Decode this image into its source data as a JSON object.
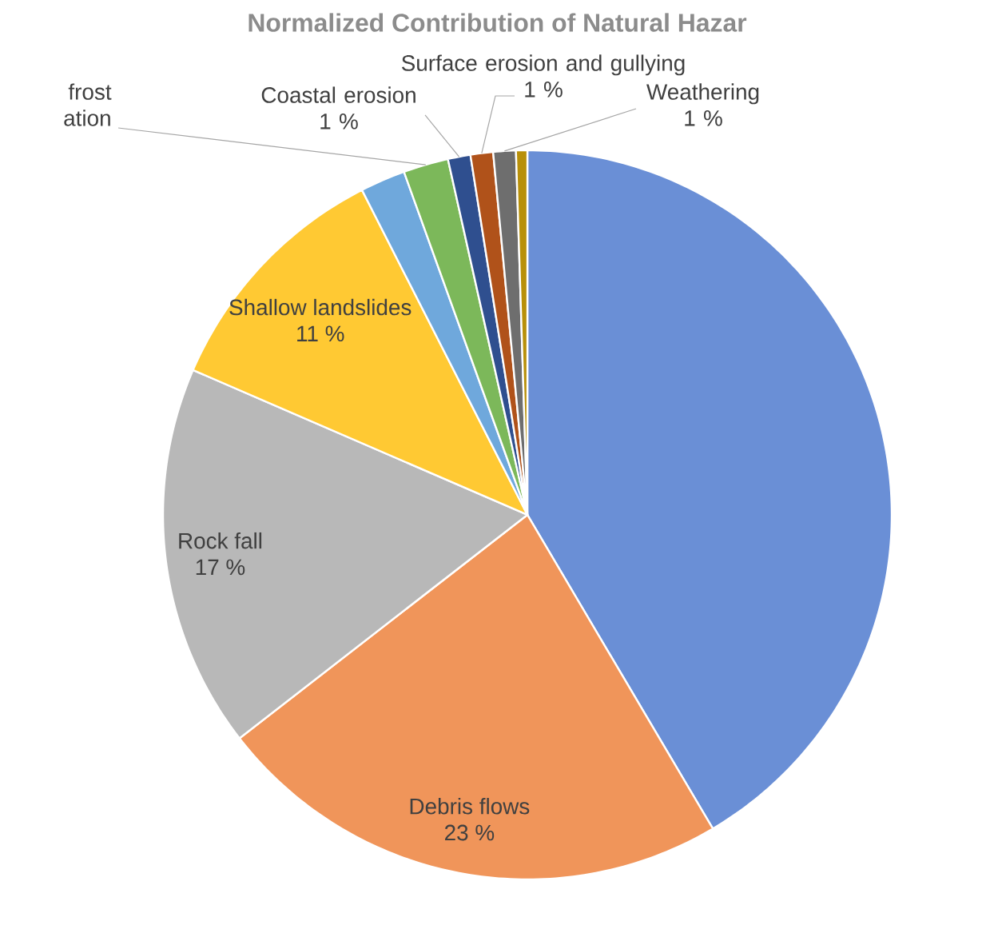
{
  "chart_data": {
    "type": "pie",
    "title": "Normalized Contribution of Natural Hazar",
    "categories": [
      null,
      "Debris flows",
      "Rock fall",
      "Shallow landslides",
      null,
      "frost ation",
      "Coastal erosion",
      "Surface erosion and gullying",
      "Weathering",
      null
    ],
    "values": [
      41.5,
      23,
      17,
      11,
      2,
      2,
      1,
      1,
      1,
      0.5
    ],
    "colors": [
      "#6a8fd6",
      "#f0955a",
      "#b8b8b8",
      "#ffc933",
      "#6fa8dc",
      "#7cb85a",
      "#2f4f8f",
      "#b0521a",
      "#6e6e6e",
      "#b8900a"
    ],
    "value_labels": [
      null,
      "23 %",
      "17 %",
      "11 %",
      null,
      null,
      "1 %",
      "1 %",
      "1 %",
      null
    ]
  }
}
